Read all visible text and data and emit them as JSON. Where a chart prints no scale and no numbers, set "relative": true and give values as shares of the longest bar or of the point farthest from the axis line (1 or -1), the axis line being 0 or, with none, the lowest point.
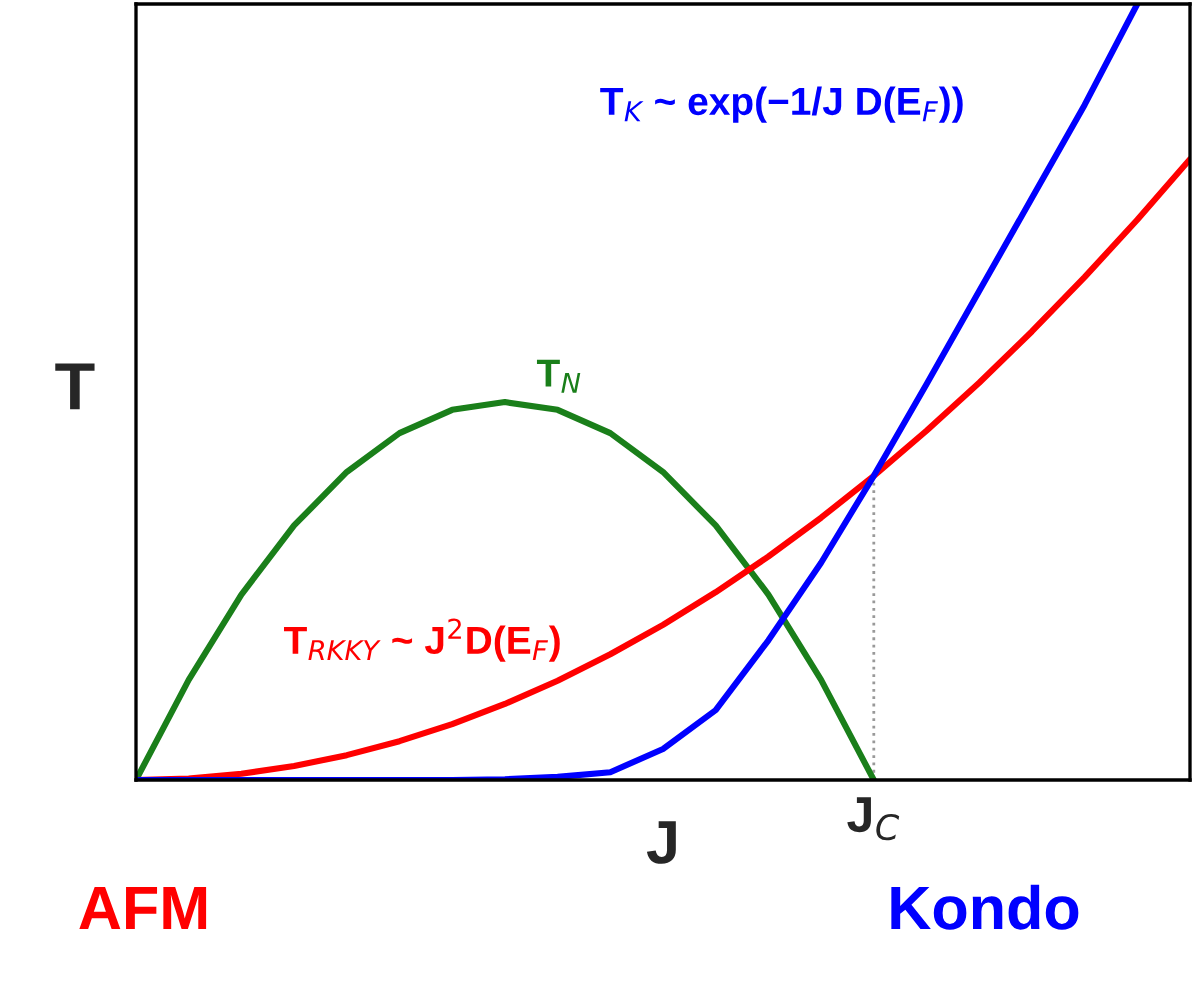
{
  "chart_data": {
    "type": "line",
    "relative": true,
    "xlabel": "J",
    "ylabel": "T",
    "categories": [
      null,
      null,
      null,
      null,
      null,
      null,
      null,
      null,
      null,
      null,
      null,
      null,
      null,
      null,
      null,
      null,
      null,
      null,
      null,
      null,
      null
    ],
    "series": [
      {
        "name": "T$_{N}$",
        "color": "#1a7f1a",
        "values": [
          0,
          0.129,
          0.239,
          0.328,
          0.397,
          0.447,
          0.477,
          0.487,
          0.477,
          0.447,
          0.397,
          0.328,
          0.239,
          0.129,
          0,
          null,
          null,
          null,
          null,
          null,
          null
        ]
      },
      {
        "name": "T$_{RKKY}$ ~ J$^{2}$D(E$_{F}$)",
        "color": "#ff0000",
        "values": [
          0,
          0.002,
          0.008,
          0.018,
          0.032,
          0.05,
          0.072,
          0.098,
          0.128,
          0.162,
          0.2,
          0.242,
          0.288,
          0.338,
          0.392,
          0.45,
          0.512,
          0.578,
          0.648,
          0.722,
          0.8
        ]
      },
      {
        "name": "T$_{K}$ ~ exp(−1/J D(E$_{F}$))",
        "color": "#0000ff",
        "values": [
          0,
          0,
          0,
          0,
          0,
          0,
          0,
          0.001,
          0.004,
          0.01,
          0.04,
          0.09,
          0.18,
          0.28,
          0.392,
          0.51,
          0.63,
          0.75,
          0.87,
          1,
          null
        ]
      }
    ],
    "annotations": [
      "J$_{C}$",
      "AFM",
      "Kondo"
    ],
    "legend": false,
    "marker": "none",
    "line_style": "solid"
  }
}
